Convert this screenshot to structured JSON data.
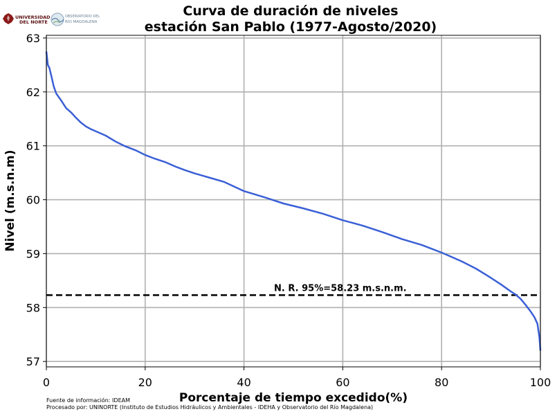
{
  "logos": {
    "university_line1": "UNIVERSIDAD",
    "university_line2": "DEL NORTE",
    "observatory_line1": "OBSERVATORIO DEL",
    "observatory_line2": "RÍO MAGDALENA"
  },
  "footer": {
    "source": "Fuente de información: IDEAM",
    "processed": "Procesado por: UNINORTE (Instituto de Estudios Hidráulicos y Ambientales - IDEHA y Observatorio del Río Magdalena)"
  },
  "chart_data": {
    "type": "line",
    "title_line1": "Curva de duración de niveles",
    "title_line2": "estación San Pablo (1977-Agosto/2020)",
    "xlabel": "Porcentaje de tiempo excedido(%)",
    "ylabel": "Nivel (m.s.n.m)",
    "xlim": [
      0,
      100
    ],
    "ylim": [
      56.9,
      63.05
    ],
    "xticks": [
      0,
      20,
      40,
      60,
      80,
      100
    ],
    "yticks": [
      57,
      58,
      59,
      60,
      61,
      62,
      63
    ],
    "grid": true,
    "colors": {
      "curve": "#3a5fd6",
      "reference": "#000000",
      "grid": "#b0b0b0"
    },
    "series": [
      {
        "x": [
          0,
          0.3,
          0.6,
          1,
          1.5,
          2,
          3,
          4,
          5,
          6,
          7,
          8,
          9,
          10,
          12,
          14,
          16,
          18,
          20,
          22,
          24,
          26,
          28,
          30,
          33,
          36,
          40,
          44,
          48,
          52,
          56,
          60,
          64,
          68,
          72,
          76,
          80,
          84,
          87,
          90,
          92,
          94,
          95,
          96,
          97,
          98,
          98.8,
          99.4,
          99.8,
          100
        ],
        "y": [
          62.75,
          62.5,
          62.45,
          62.3,
          62.1,
          61.97,
          61.84,
          61.7,
          61.62,
          61.52,
          61.43,
          61.36,
          61.31,
          61.27,
          61.19,
          61.08,
          60.99,
          60.92,
          60.83,
          60.76,
          60.7,
          60.62,
          60.55,
          60.49,
          60.41,
          60.33,
          60.16,
          60.05,
          59.93,
          59.84,
          59.74,
          59.62,
          59.52,
          59.4,
          59.27,
          59.16,
          59.02,
          58.86,
          58.72,
          58.55,
          58.43,
          58.3,
          58.24,
          58.16,
          58.05,
          57.93,
          57.82,
          57.7,
          57.45,
          57.2
        ]
      }
    ],
    "reference_line": {
      "y": 58.23,
      "label": "N. R. 95%=58.23 m.s.n.m."
    }
  }
}
